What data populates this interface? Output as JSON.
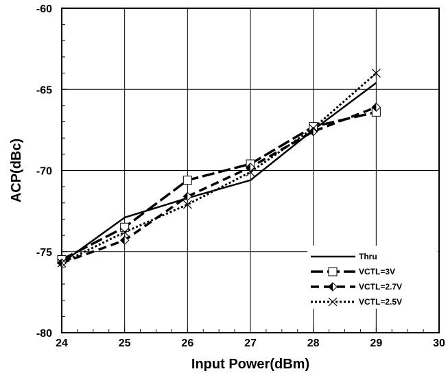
{
  "chart_data": {
    "type": "line",
    "title": "",
    "xlabel": "Input Power(dBm)",
    "ylabel": "ACP(dBc)",
    "xlim": [
      24,
      30
    ],
    "ylim": [
      -80,
      -60
    ],
    "x_ticks": [
      24,
      25,
      26,
      27,
      28,
      29,
      30
    ],
    "y_ticks": [
      -60,
      -65,
      -70,
      -75,
      -80
    ],
    "grid": true,
    "legend_position": "bottom-right",
    "series": [
      {
        "name": "Thru",
        "style": "solid",
        "marker": "none",
        "color": "#000000",
        "x": [
          24,
          25,
          26,
          27,
          28,
          29
        ],
        "y": [
          -75.7,
          -72.9,
          -71.7,
          -70.6,
          -67.5,
          -64.6
        ]
      },
      {
        "name": "VCTL=3V",
        "style": "long-dash",
        "marker": "square",
        "color": "#000000",
        "x": [
          24,
          25,
          26,
          27,
          28,
          29
        ],
        "y": [
          -75.5,
          -73.5,
          -70.6,
          -69.6,
          -67.3,
          -66.4
        ]
      },
      {
        "name": "VCTL=2.7V",
        "style": "dash",
        "marker": "diamond",
        "color": "#000000",
        "x": [
          24,
          25,
          26,
          27,
          28,
          29
        ],
        "y": [
          -75.7,
          -74.3,
          -71.6,
          -69.8,
          -67.6,
          -66.1
        ]
      },
      {
        "name": "VCTL=2.5V",
        "style": "dotted",
        "marker": "x",
        "color": "#000000",
        "x": [
          24,
          25,
          26,
          27,
          28,
          29
        ],
        "y": [
          -75.7,
          -73.8,
          -72.1,
          -70.1,
          -67.4,
          -64.0
        ]
      }
    ]
  }
}
